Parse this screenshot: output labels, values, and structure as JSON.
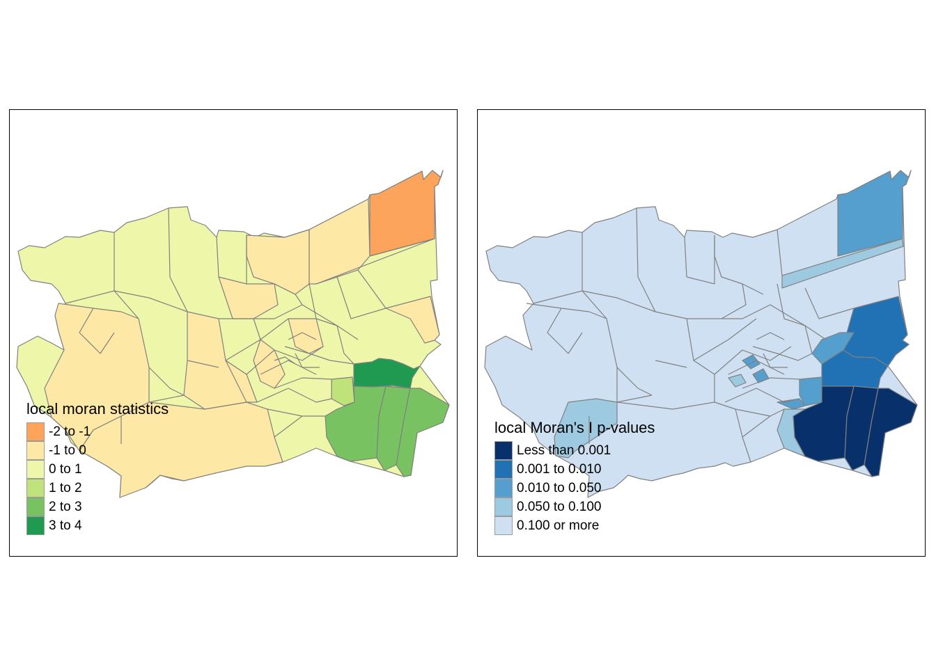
{
  "colors": {
    "border": "#808080",
    "frame": "#000000",
    "background": "#ffffff"
  },
  "maps": [
    {
      "name": "local-moran-statistics",
      "legend": {
        "title": "local moran statistics",
        "items": [
          {
            "label": "-2 to -1",
            "color": "#FDA45C"
          },
          {
            "label": "-1 to 0",
            "color": "#FEE8A5"
          },
          {
            "label": "0 to 1",
            "color": "#EEF7A9"
          },
          {
            "label": "1 to 2",
            "color": "#BFE27A"
          },
          {
            "label": "2 to 3",
            "color": "#79C262"
          },
          {
            "label": "3 to 4",
            "color": "#209A51"
          }
        ]
      }
    },
    {
      "name": "local-morans-i-p-values",
      "legend": {
        "title": "local Moran's I p-values",
        "items": [
          {
            "label": "Less than 0.001",
            "color": "#08306B"
          },
          {
            "label": "0.001 to 0.010",
            "color": "#2171B5"
          },
          {
            "label": "0.010 to 0.050",
            "color": "#559FCF"
          },
          {
            "label": "0.050 to 0.100",
            "color": "#9ECAE1"
          },
          {
            "label": "0.100 or more",
            "color": "#CFE0F2"
          }
        ]
      }
    }
  ]
}
